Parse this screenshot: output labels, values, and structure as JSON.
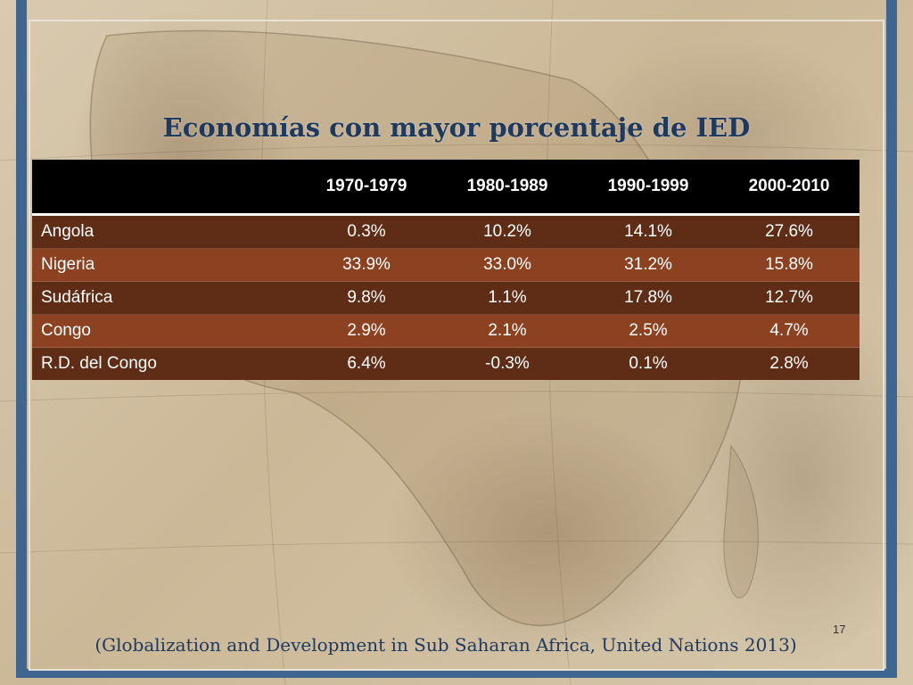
{
  "slide": {
    "title": "Economías con mayor porcentaje de IED",
    "page_number": "17",
    "source": "(Globalization and Development in Sub Saharan Africa, United Nations 2013)"
  },
  "colors": {
    "frame": "#3f6690",
    "title": "#1f3a60",
    "header_bg": "#000000",
    "row_dark": "#5f2d16",
    "row_light": "#8c4221"
  },
  "table": {
    "headers": [
      "",
      "1970-1979",
      "1980-1989",
      "1990-1999",
      "2000-2010"
    ],
    "rows": [
      {
        "country": "Angola",
        "values": [
          "0.3%",
          "10.2%",
          "14.1%",
          "27.6%"
        ]
      },
      {
        "country": "Nigeria",
        "values": [
          "33.9%",
          "33.0%",
          "31.2%",
          "15.8%"
        ]
      },
      {
        "country": "Sudáfrica",
        "values": [
          "9.8%",
          "1.1%",
          "17.8%",
          "12.7%"
        ]
      },
      {
        "country": "Congo",
        "values": [
          "2.9%",
          "2.1%",
          "2.5%",
          "4.7%"
        ]
      },
      {
        "country": "R.D. del Congo",
        "values": [
          "6.4%",
          "-0.3%",
          "0.1%",
          "2.8%"
        ]
      }
    ]
  }
}
